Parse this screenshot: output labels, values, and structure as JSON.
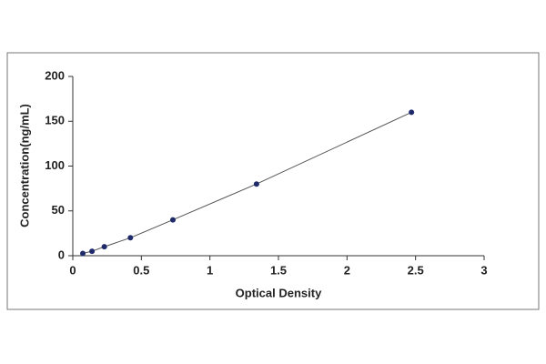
{
  "chart_data": {
    "type": "line",
    "x_label": "Optical Density",
    "y_label": "Concentration(ng/mL)",
    "x": [
      0.073,
      0.14,
      0.23,
      0.42,
      0.73,
      1.34,
      2.47
    ],
    "values": [
      2.5,
      5,
      10,
      20,
      40,
      80,
      160
    ],
    "color": "#1f2a6b",
    "line_color": "#555555",
    "xlim": [
      0,
      3
    ],
    "xticks": [
      0,
      0.5,
      1,
      1.5,
      2,
      2.5,
      3
    ],
    "ylim": [
      0,
      200
    ],
    "yticks": [
      0,
      50,
      100,
      150,
      200
    ],
    "grid": false
  }
}
